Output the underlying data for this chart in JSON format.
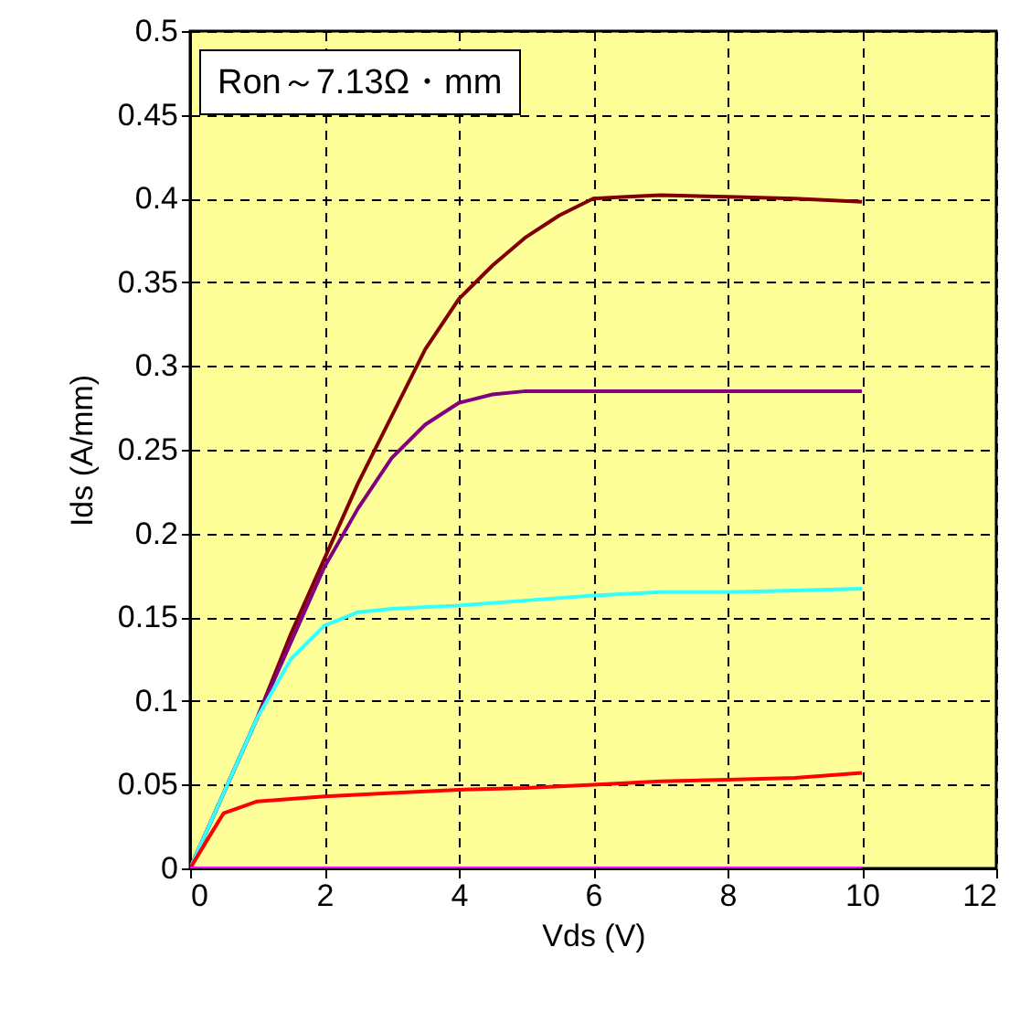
{
  "chart_data": {
    "type": "line",
    "xlabel": "Vds (V)",
    "ylabel": "Ids (A/mm)",
    "annotations": [
      "Ron～7.13Ω・mm"
    ],
    "xlim": [
      0,
      12
    ],
    "xticks": [
      0,
      2,
      4,
      6,
      8,
      10,
      12
    ],
    "ylim": [
      0,
      0.5
    ],
    "yticks": [
      0,
      0.05,
      0.1,
      0.15,
      0.2,
      0.25,
      0.3,
      0.35,
      0.4,
      0.45,
      0.5
    ],
    "grid": true,
    "line_style": "solid",
    "marker": "none",
    "series": [
      {
        "color": "#800000",
        "x": [
          0,
          0.5,
          1,
          1.5,
          2,
          2.5,
          3,
          3.5,
          4,
          4.5,
          5,
          5.5,
          6,
          6.5,
          7,
          8,
          9,
          10
        ],
        "values": [
          0,
          0.045,
          0.09,
          0.14,
          0.185,
          0.23,
          0.27,
          0.31,
          0.34,
          0.36,
          0.377,
          0.39,
          0.4,
          0.401,
          0.402,
          0.401,
          0.4,
          0.398
        ]
      },
      {
        "color": "#800080",
        "x": [
          0,
          0.5,
          1,
          1.5,
          2,
          2.5,
          3,
          3.5,
          4,
          4.5,
          5,
          6,
          7,
          8,
          9,
          10
        ],
        "values": [
          0,
          0.045,
          0.09,
          0.135,
          0.18,
          0.215,
          0.245,
          0.265,
          0.278,
          0.283,
          0.285,
          0.285,
          0.285,
          0.285,
          0.285,
          0.285
        ]
      },
      {
        "color": "#33ffff",
        "x": [
          0,
          0.5,
          1,
          1.5,
          2,
          2.5,
          3,
          4,
          5,
          6,
          7,
          8,
          9,
          10
        ],
        "values": [
          0,
          0.045,
          0.09,
          0.125,
          0.145,
          0.153,
          0.155,
          0.157,
          0.16,
          0.163,
          0.165,
          0.165,
          0.166,
          0.167
        ]
      },
      {
        "color": "#ff0000",
        "x": [
          0,
          0.3,
          0.5,
          1,
          2,
          3,
          4,
          5,
          6,
          7,
          8,
          9,
          10
        ],
        "values": [
          0,
          0.02,
          0.033,
          0.04,
          0.043,
          0.045,
          0.047,
          0.048,
          0.05,
          0.052,
          0.053,
          0.054,
          0.057
        ]
      },
      {
        "color": "#ff00ff",
        "x": [
          0,
          5,
          10
        ],
        "values": [
          0,
          0,
          0
        ]
      }
    ]
  }
}
